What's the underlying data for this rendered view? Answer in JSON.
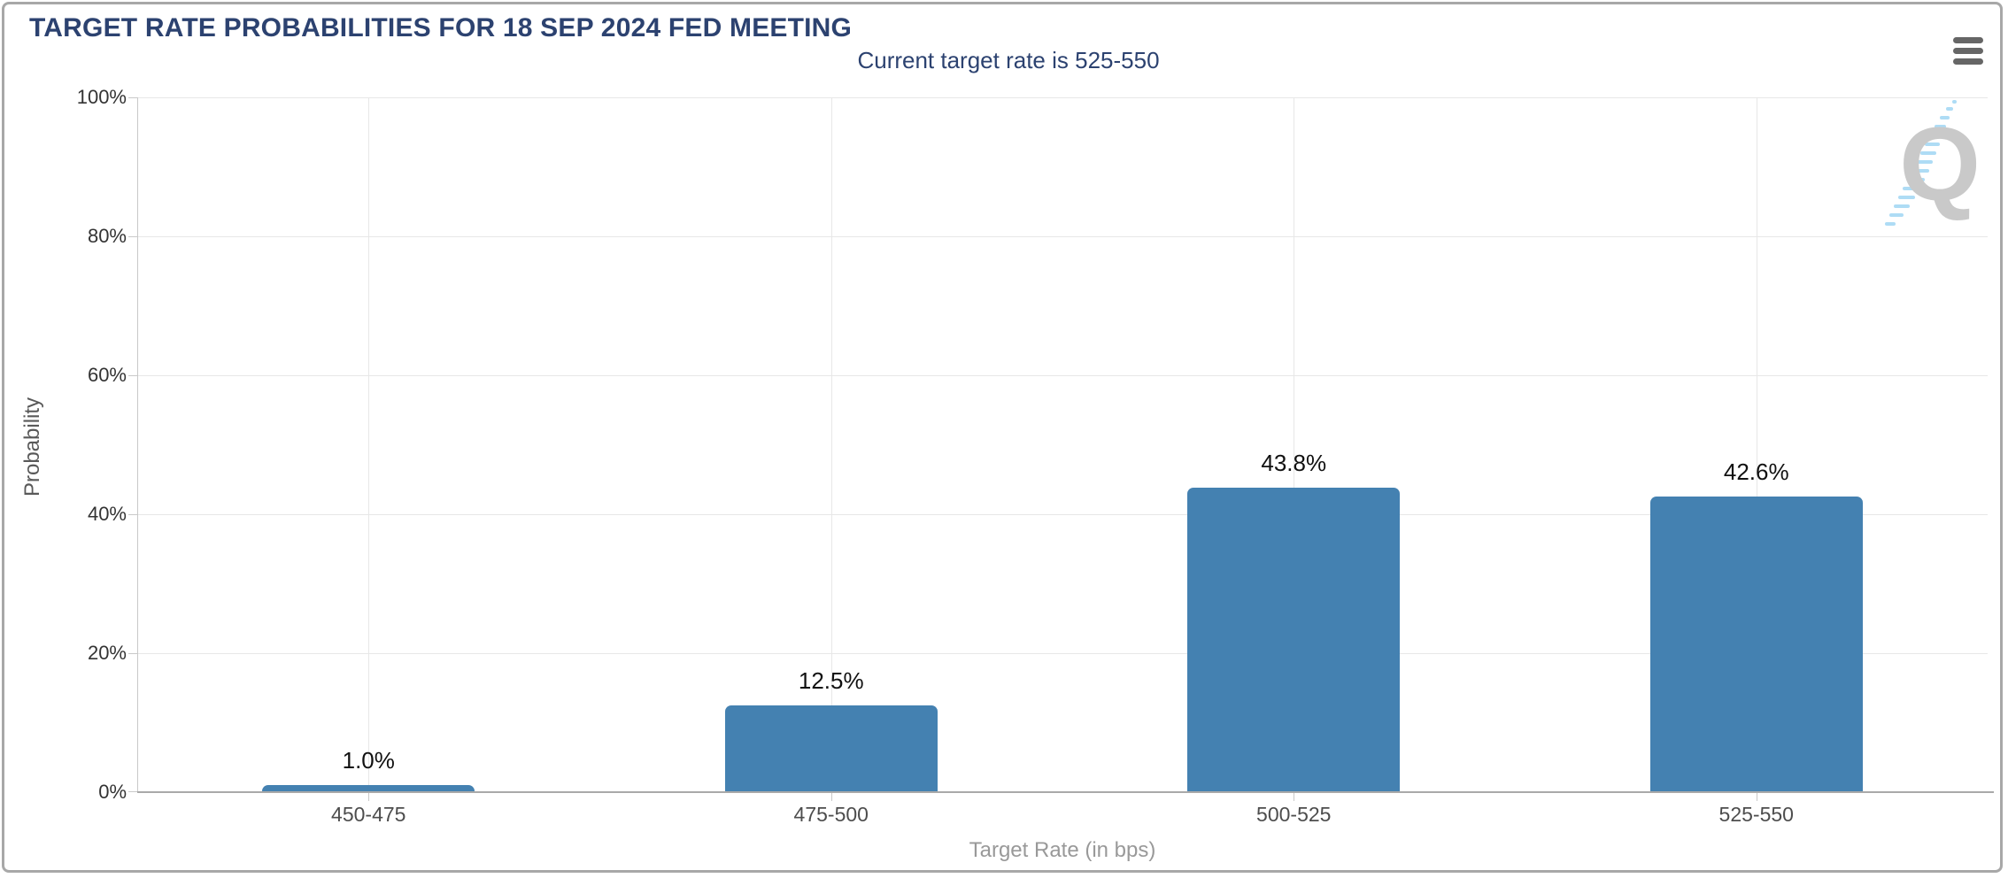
{
  "header": {
    "title": "TARGET RATE PROBABILITIES FOR 18 SEP 2024 FED MEETING",
    "menu_icon": "hamburger-menu-icon"
  },
  "chart_data": {
    "type": "bar",
    "title": "TARGET RATE PROBABILITIES FOR 18 SEP 2024 FED MEETING",
    "subtitle": "Current target rate is 525-550",
    "categories": [
      "450-475",
      "475-500",
      "500-525",
      "525-550"
    ],
    "values": [
      1.0,
      12.5,
      43.8,
      42.6
    ],
    "value_labels": [
      "1.0%",
      "12.5%",
      "43.8%",
      "42.6%"
    ],
    "xlabel": "Target Rate (in bps)",
    "ylabel": "Probability",
    "ylim": [
      0,
      100
    ],
    "yticks": [
      "0%",
      "20%",
      "40%",
      "60%",
      "80%",
      "100%"
    ],
    "grid": true,
    "legend": false,
    "bar_color": "#4481B1",
    "watermark_letter": "Q"
  },
  "colors": {
    "title_navy": "#2C4270",
    "bar_blue": "#4481B1",
    "gridline": "#E7E7E7",
    "axis_line": "#A9A9A9",
    "watermark_gray": "#C9C9C9",
    "watermark_blue": "#AEDCF5"
  }
}
